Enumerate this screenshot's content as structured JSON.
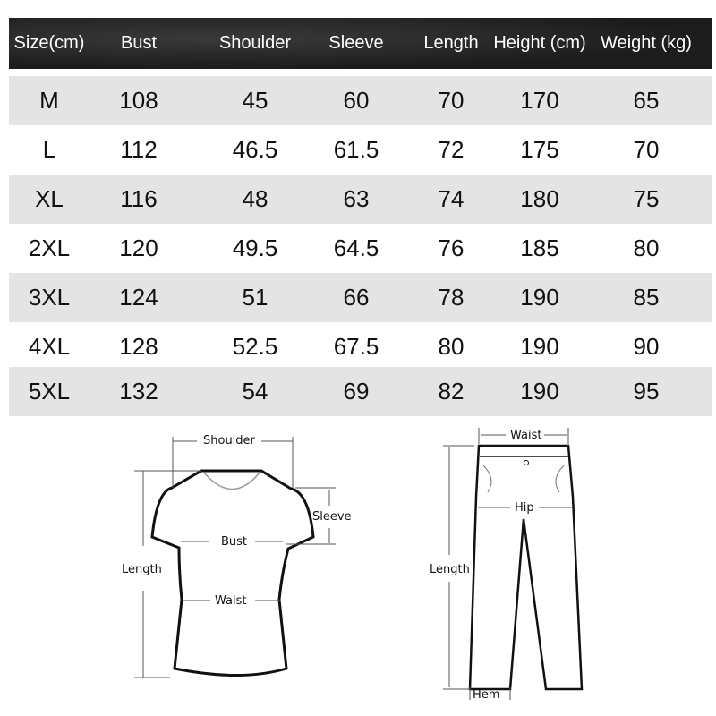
{
  "table": {
    "headers": [
      "Size(cm)",
      "Bust",
      "Shoulder",
      "Sleeve",
      "Length",
      "Height (cm)",
      "Weight (kg)"
    ],
    "rows": [
      [
        "M",
        "108",
        "45",
        "60",
        "70",
        "170",
        "65"
      ],
      [
        "L",
        "112",
        "46.5",
        "61.5",
        "72",
        "175",
        "70"
      ],
      [
        "XL",
        "116",
        "48",
        "63",
        "74",
        "180",
        "75"
      ],
      [
        "2XL",
        "120",
        "49.5",
        "64.5",
        "76",
        "185",
        "80"
      ],
      [
        "3XL",
        "124",
        "51",
        "66",
        "78",
        "190",
        "85"
      ],
      [
        "4XL",
        "128",
        "52.5",
        "67.5",
        "80",
        "190",
        "90"
      ],
      [
        "5XL",
        "132",
        "54",
        "69",
        "82",
        "190",
        "95"
      ]
    ]
  },
  "tshirt_diagram": {
    "shoulder": "Shoulder",
    "sleeve": "Sleeve",
    "bust": "Bust",
    "length": "Length",
    "waist": "Waist"
  },
  "pants_diagram": {
    "waist": "Waist",
    "hip": "Hip",
    "length": "Length",
    "hem": "Hem"
  },
  "colors": {
    "header_bg": "#222222",
    "stripe": "#e4e4e4"
  }
}
